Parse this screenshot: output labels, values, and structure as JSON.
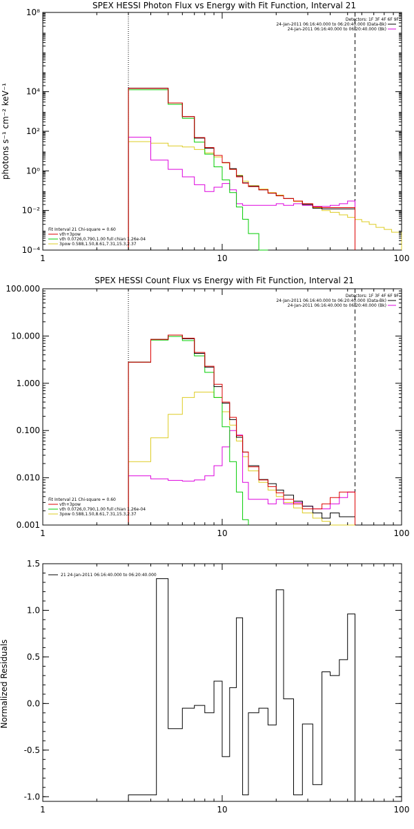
{
  "panels": [
    {
      "title": "SPEX HESSI Photon Flux vs Energy with Fit Function, Interval 21",
      "ylabel": "photons s⁻¹ cm⁻² keV⁻¹",
      "legend_right": [
        "Detectors: 1F 3F 4F 6F 9F",
        "24-Jan-2011 06:16:40.000 to 06:20:40.000 (Data-Bk)",
        "24-Jan-2011 06:16:40.000 to 06:20:40.000 (Bk)"
      ],
      "legend_left": [
        "Fit Interval 21   Chi-square = 0.60",
        "vth+3pow",
        "vth 0.0726,0.790,1.00  full chian 1.26e-04",
        "3pow 0.588,1.50,8.61,7.31,15.3,2.37"
      ]
    },
    {
      "title": "SPEX HESSI Count Flux vs Energy with Fit Function, Interval 21",
      "ylabel": "",
      "legend_right": [
        "Detectors: 1F 3F 4F 6F 9F",
        "24-Jan-2011 06:16:40.000 to 06:20:40.000 (Data-Bk)",
        "24-Jan-2011 06:16:40.000 to 06:20:40.000 (Bk)"
      ],
      "legend_left": [
        "Fit Interval 21   Chi-square = 0.60",
        "vth+3pow",
        "vth 0.0726,0.790,1.00  full chian 1.26e-04",
        "3pow 0.588,1.50,8.61,7.31,15.3,2.37"
      ]
    },
    {
      "title": "",
      "ylabel": "Normalized Residuals",
      "legend_left": [
        "21  24-Jan-2011 06:16:40.000 to 06:20:40.000"
      ]
    }
  ],
  "colors": {
    "data": "#000000",
    "total": "#dd0000",
    "vth": "#00cc00",
    "pow": "#ddcc22",
    "bk": "#dd00dd",
    "fit_start": "#ff8800"
  },
  "chart_data": [
    {
      "type": "line",
      "title": "SPEX HESSI Photon Flux vs Energy with Fit Function, Interval 21",
      "xlabel": "",
      "ylabel": "photons s⁻¹ cm⁻² keV⁻¹",
      "xscale": "log",
      "yscale": "log",
      "xlim": [
        1,
        100
      ],
      "ylim": [
        0.0001,
        100000000
      ],
      "x_ticks": [
        1,
        10,
        100
      ],
      "y_ticks": [
        0.0001,
        0.01,
        1,
        100,
        10000,
        100000000
      ],
      "x_tick_labels": [
        "1",
        "10",
        "100"
      ],
      "y_tick_labels": [
        "10⁻⁴",
        "10⁻²",
        "10⁰",
        "10²",
        "10⁴",
        "10⁸"
      ],
      "fit_range": [
        3,
        55
      ],
      "bin_edges": [
        3,
        4,
        5,
        6,
        7,
        8,
        9,
        10,
        11,
        12,
        13,
        14,
        16,
        18,
        20,
        22,
        25,
        28,
        32,
        36,
        40,
        45,
        50,
        55,
        60,
        66,
        72,
        80,
        88,
        100
      ],
      "series": [
        {
          "key": "data",
          "values": [
            15000,
            15000,
            2700,
            550,
            45,
            14,
            6,
            2.6,
            1.3,
            0.55,
            0.25,
            0.17,
            0.11,
            0.075,
            0.055,
            0.04,
            0.03,
            0.02,
            0.013,
            0.012,
            0.012,
            0.012,
            0.012
          ]
        },
        {
          "key": "total",
          "values": [
            14500,
            14500,
            2700,
            550,
            48,
            15,
            6,
            2.6,
            1.2,
            0.5,
            0.24,
            0.16,
            0.11,
            0.075,
            0.055,
            0.04,
            0.03,
            0.022,
            0.015,
            0.014,
            0.014,
            0.014,
            0.014
          ]
        },
        {
          "key": "vth",
          "values": [
            12500,
            12500,
            2300,
            450,
            28,
            7,
            1.6,
            0.35,
            0.08,
            0.015,
            0.0036,
            0.00068,
            0.0001
          ]
        },
        {
          "key": "pow",
          "values": [
            30,
            25,
            18,
            16,
            12,
            8,
            5,
            2.5,
            1.2,
            0.6,
            0.3,
            0.18,
            0.12,
            0.08,
            0.06,
            0.04,
            0.028,
            0.02,
            0.014,
            0.01,
            0.008,
            0.006,
            0.0045,
            0.0035,
            0.0027,
            0.002,
            0.0014,
            0.0011,
            0.0008
          ]
        },
        {
          "key": "bk",
          "values": [
            50,
            3.5,
            1.2,
            0.5,
            0.2,
            0.09,
            0.15,
            0.23,
            0.11,
            0.022,
            0.018,
            0.018,
            0.018,
            0.018,
            0.022,
            0.018,
            0.022,
            0.018,
            0.016,
            0.016,
            0.018,
            0.022,
            0.03
          ]
        }
      ]
    },
    {
      "type": "line",
      "title": "SPEX HESSI Count Flux vs Energy with Fit Function, Interval 21",
      "xlabel": "",
      "ylabel": "",
      "xscale": "log",
      "yscale": "log",
      "xlim": [
        1,
        100
      ],
      "ylim": [
        0.001,
        100
      ],
      "x_ticks": [
        1,
        10,
        100
      ],
      "y_ticks": [
        0.001,
        0.01,
        0.1,
        1,
        10,
        100
      ],
      "x_tick_labels": [
        "1",
        "10",
        "100"
      ],
      "y_tick_labels": [
        "0.001",
        "0.010",
        "0.100",
        "1.000",
        "10.000",
        "100.000"
      ],
      "fit_range": [
        3,
        55
      ],
      "bin_edges": [
        3,
        4,
        5,
        6,
        7,
        8,
        9,
        10,
        11,
        12,
        13,
        14,
        16,
        18,
        20,
        22,
        25,
        28,
        32,
        36,
        40,
        45,
        50,
        55,
        60
      ],
      "series": [
        {
          "key": "data",
          "values": [
            2.8,
            8.5,
            10.5,
            8.8,
            4.3,
            2.2,
            0.85,
            0.38,
            0.17,
            0.072,
            0.035,
            0.018,
            0.0092,
            0.0075,
            0.0055,
            0.0043,
            0.0032,
            0.0025,
            0.0018,
            0.0014,
            0.0018,
            0.0015,
            0.0015
          ]
        },
        {
          "key": "total",
          "values": [
            2.8,
            8.5,
            10.5,
            9,
            4.5,
            2.3,
            0.95,
            0.4,
            0.19,
            0.078,
            0.035,
            0.017,
            0.009,
            0.0065,
            0.0048,
            0.0035,
            0.0028,
            0.0022,
            0.0022,
            0.0028,
            0.0038,
            0.005,
            0.005
          ]
        },
        {
          "key": "vth",
          "values": [
            2.8,
            8.2,
            9.8,
            8.0,
            3.8,
            1.7,
            0.5,
            0.12,
            0.022,
            0.005,
            0.0013
          ]
        },
        {
          "key": "pow",
          "values": [
            0.022,
            0.07,
            0.22,
            0.5,
            0.65,
            0.65,
            0.5,
            0.25,
            0.13,
            0.06,
            0.028,
            0.014,
            0.008,
            0.0055,
            0.004,
            0.003,
            0.0023,
            0.0018,
            0.0014,
            0.0012,
            0.001,
            0.0008,
            0.0006
          ]
        },
        {
          "key": "bk",
          "values": [
            0.011,
            0.0095,
            0.0088,
            0.0085,
            0.009,
            0.011,
            0.018,
            0.045,
            0.1,
            0.08,
            0.008,
            0.0035,
            0.0035,
            0.0028,
            0.0035,
            0.0028,
            0.003,
            0.0025,
            0.0022,
            0.0022,
            0.0028,
            0.0038,
            0.005
          ]
        }
      ]
    },
    {
      "type": "line",
      "title": "",
      "xlabel": "",
      "ylabel": "Normalized Residuals",
      "xscale": "log",
      "yscale": "linear",
      "xlim": [
        1,
        100
      ],
      "ylim": [
        -1.05,
        1.5
      ],
      "x_ticks": [
        1,
        10,
        100
      ],
      "y_ticks": [
        -1.0,
        -0.5,
        0.0,
        0.5,
        1.0,
        1.5
      ],
      "x_tick_labels": [
        "1",
        "10",
        "100"
      ],
      "y_tick_labels": [
        "-1.0",
        "-0.5",
        "0.0",
        "0.5",
        "1.0",
        "1.5"
      ],
      "bin_edges": [
        3,
        4,
        4.3,
        5,
        6,
        7,
        8,
        9,
        10,
        11,
        12,
        13,
        14,
        16,
        18,
        20,
        22,
        25,
        28,
        32,
        36,
        40,
        45,
        50,
        55
      ],
      "series": [
        {
          "key": "data",
          "values": [
            -0.98,
            -0.98,
            1.34,
            -0.27,
            -0.05,
            -0.02,
            -0.1,
            0.24,
            -0.57,
            0.17,
            0.92,
            -0.98,
            -0.1,
            -0.05,
            -0.23,
            1.22,
            0.05,
            -0.98,
            -0.22,
            -0.87,
            0.34,
            0.3,
            0.47,
            0.96
          ]
        }
      ]
    }
  ]
}
